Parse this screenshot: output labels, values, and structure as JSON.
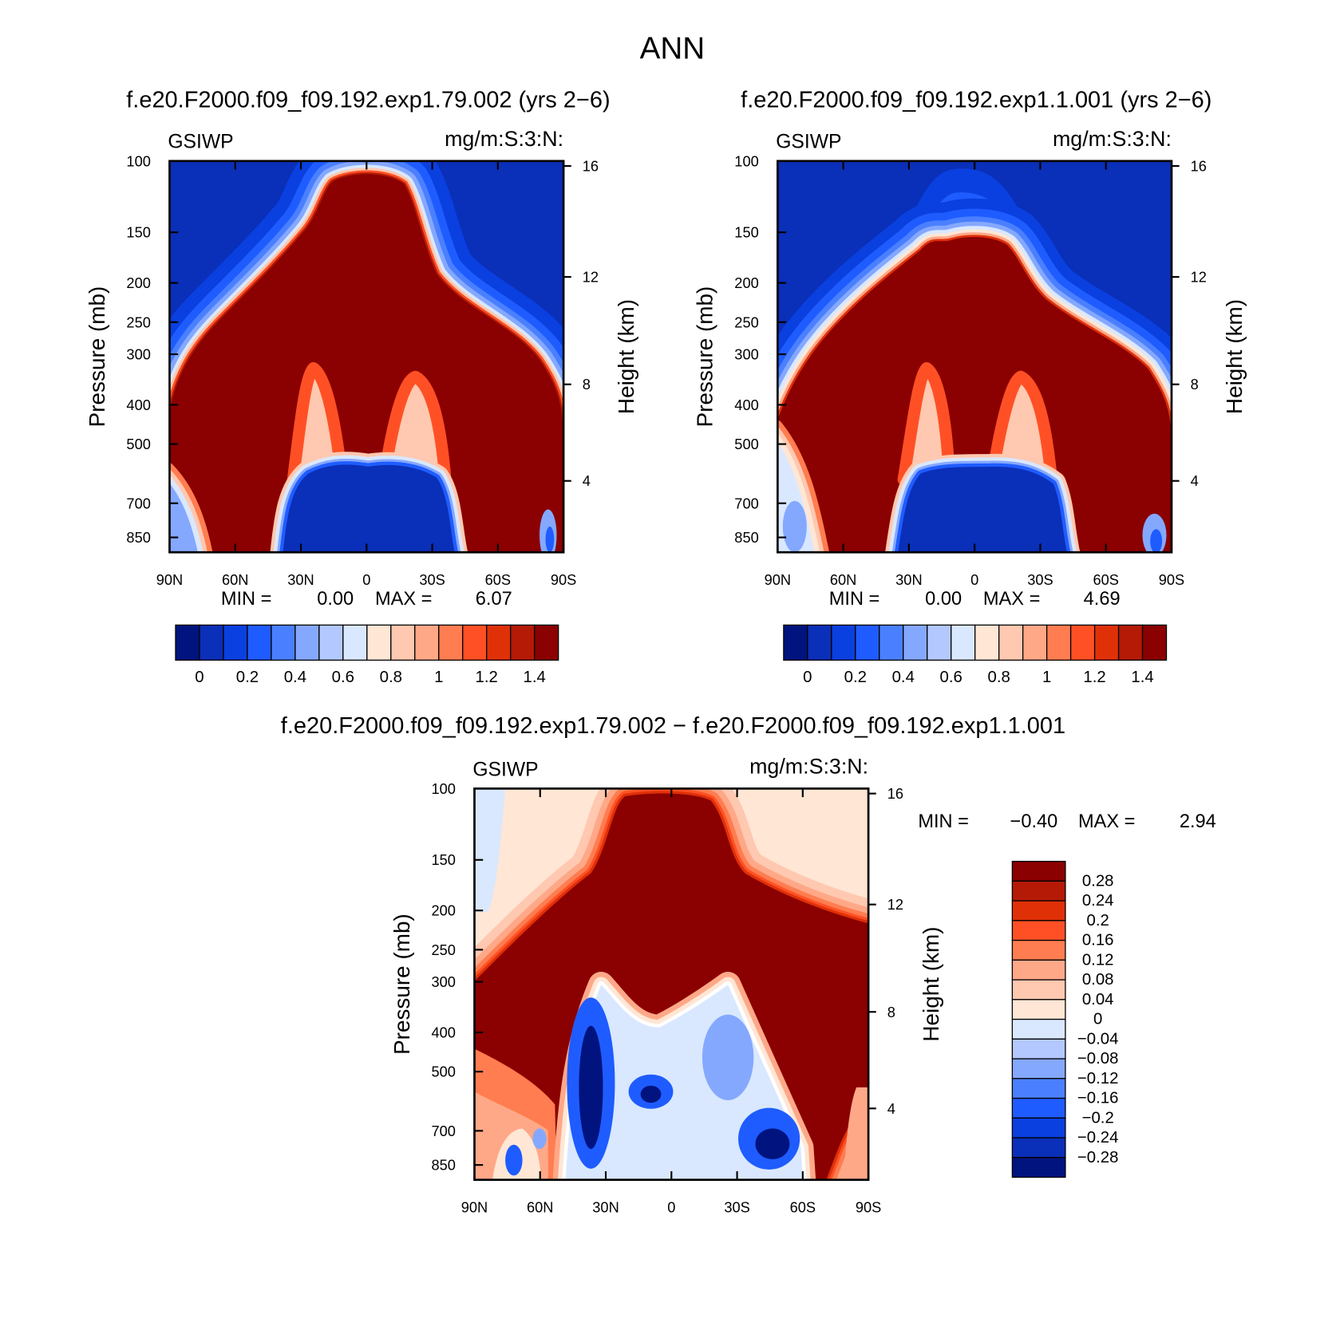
{
  "title": "ANN",
  "chart_data": [
    {
      "type": "contour",
      "title": "f.e20.F2000.f09_f09.192.exp1.79.002 (yrs 2−6)",
      "left_label": "GSIWP",
      "right_label": "mg/m:S:3:N:",
      "ylabel": "Pressure (mb)",
      "y2label": "Height (km)",
      "xlim": [
        90,
        -90
      ],
      "xticks": [
        {
          "value": 90,
          "label": "90N"
        },
        {
          "value": 60,
          "label": "60N"
        },
        {
          "value": 30,
          "label": "30N"
        },
        0,
        {
          "value": -30,
          "label": "30S"
        },
        {
          "value": -60,
          "label": "60S"
        },
        {
          "value": -90,
          "label": "90S"
        }
      ],
      "ylim": [
        100,
        925
      ],
      "ylog": true,
      "yticks": [
        100,
        150,
        200,
        250,
        300,
        400,
        500,
        700,
        850
      ],
      "y2ticks": [
        4,
        8,
        12,
        16
      ],
      "stats": [
        {
          "name": "MIN =",
          "value": 0,
          "label": "0.00"
        },
        {
          "name": "MAX =",
          "value": 6.07,
          "label": "6.07"
        }
      ],
      "colorbar": {
        "orientation": "horizontal",
        "levels": [
          0,
          null,
          0.2,
          null,
          0.4,
          null,
          0.6,
          null,
          0.8,
          null,
          1,
          null,
          1.2,
          null,
          1.4
        ],
        "colors": [
          "#00137f",
          "#0a2fb8",
          "#0a40e0",
          "#1f5cff",
          "#4a80ff",
          "#85a8ff",
          "#b3c8ff",
          "#d9e8ff",
          "#ffe6d5",
          "#ffc8b0",
          "#ffa888",
          "#ff7d50",
          "#ff5025",
          "#e03008",
          "#b41a05",
          "#8b0000"
        ]
      }
    },
    {
      "type": "contour",
      "title": "f.e20.F2000.f09_f09.192.exp1.1.001 (yrs 2−6)",
      "left_label": "GSIWP",
      "right_label": "mg/m:S:3:N:",
      "ylabel": "Pressure (mb)",
      "y2label": "Height (km)",
      "xlim": [
        90,
        -90
      ],
      "xticks": [
        {
          "value": 90,
          "label": "90N"
        },
        {
          "value": 60,
          "label": "60N"
        },
        {
          "value": 30,
          "label": "30N"
        },
        0,
        {
          "value": -30,
          "label": "30S"
        },
        {
          "value": -60,
          "label": "60S"
        },
        {
          "value": -90,
          "label": "90S"
        }
      ],
      "ylim": [
        100,
        925
      ],
      "ylog": true,
      "yticks": [
        100,
        150,
        200,
        250,
        300,
        400,
        500,
        700,
        850
      ],
      "y2ticks": [
        4,
        8,
        12,
        16
      ],
      "stats": [
        {
          "name": "MIN =",
          "value": 0,
          "label": "0.00"
        },
        {
          "name": "MAX =",
          "value": 4.69,
          "label": "4.69"
        }
      ],
      "colorbar": {
        "orientation": "horizontal",
        "levels": [
          0,
          null,
          0.2,
          null,
          0.4,
          null,
          0.6,
          null,
          0.8,
          null,
          1,
          null,
          1.2,
          null,
          1.4
        ],
        "colors": [
          "#00137f",
          "#0a2fb8",
          "#0a40e0",
          "#1f5cff",
          "#4a80ff",
          "#85a8ff",
          "#b3c8ff",
          "#d9e8ff",
          "#ffe6d5",
          "#ffc8b0",
          "#ffa888",
          "#ff7d50",
          "#ff5025",
          "#e03008",
          "#b41a05",
          "#8b0000"
        ]
      }
    },
    {
      "type": "contour",
      "title": "f.e20.F2000.f09_f09.192.exp1.79.002 − f.e20.F2000.f09_f09.192.exp1.1.001",
      "left_label": "GSIWP",
      "right_label": "mg/m:S:3:N:",
      "ylabel": "Pressure (mb)",
      "y2label": "Height (km)",
      "xlim": [
        90,
        -90
      ],
      "xticks": [
        {
          "value": 90,
          "label": "90N"
        },
        {
          "value": 60,
          "label": "60N"
        },
        {
          "value": 30,
          "label": "30N"
        },
        0,
        {
          "value": -30,
          "label": "30S"
        },
        {
          "value": -60,
          "label": "60S"
        },
        {
          "value": -90,
          "label": "90S"
        }
      ],
      "ylim": [
        100,
        925
      ],
      "ylog": true,
      "yticks": [
        100,
        150,
        200,
        250,
        300,
        400,
        500,
        700,
        850
      ],
      "y2ticks": [
        4,
        8,
        12,
        16
      ],
      "stats": [
        {
          "name": "MIN =",
          "value": -0.4,
          "label": "−0.40"
        },
        {
          "name": "MAX =",
          "value": 2.94,
          "label": "2.94"
        }
      ],
      "colorbar": {
        "orientation": "vertical",
        "levels": [
          0.28,
          0.24,
          0.2,
          0.16,
          0.12,
          0.08,
          0.04,
          0,
          {
            "value": -0.04,
            "label": "−0.04"
          },
          {
            "value": -0.08,
            "label": "−0.08"
          },
          {
            "value": -0.12,
            "label": "−0.12"
          },
          {
            "value": -0.16,
            "label": "−0.16"
          },
          {
            "value": -0.2,
            "label": "−0.2"
          },
          {
            "value": -0.24,
            "label": "−0.24"
          },
          {
            "value": -0.28,
            "label": "−0.28"
          }
        ],
        "colors": [
          "#8b0000",
          "#b41a05",
          "#e03008",
          "#ff5025",
          "#ff7d50",
          "#ffa888",
          "#ffc8b0",
          "#ffe6d5",
          "#d9e8ff",
          "#b3c8ff",
          "#85a8ff",
          "#4a80ff",
          "#1f5cff",
          "#0a40e0",
          "#0a2fb8",
          "#00137f"
        ]
      }
    }
  ]
}
